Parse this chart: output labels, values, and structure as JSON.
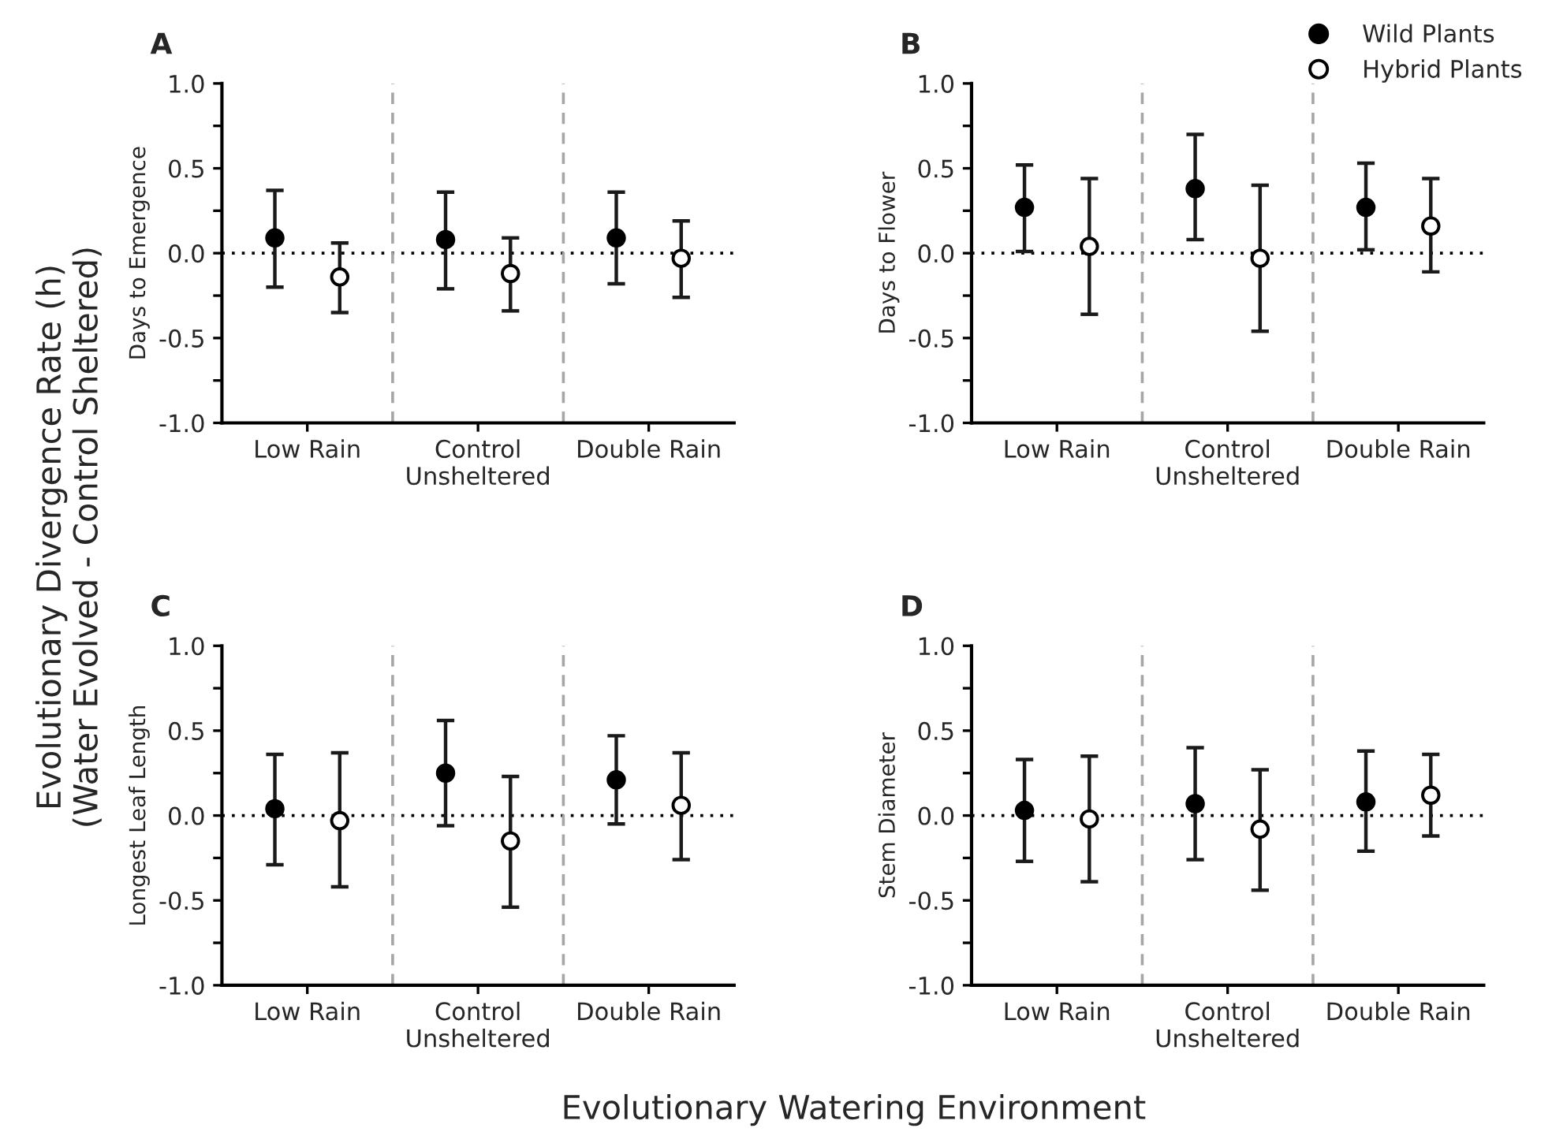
{
  "chart_data": [
    {
      "type": "scatter",
      "title": "A",
      "ylabel": "Days to Emergence",
      "categories": [
        "Low Rain",
        "Control\nUnsheltered",
        "Double Rain"
      ],
      "ylim": [
        -1.0,
        1.0
      ],
      "yticks": [
        {
          "value": -1.0,
          "label": "-1.0"
        },
        {
          "value": -0.75,
          "label": null
        },
        {
          "value": -0.5,
          "label": "-0.5"
        },
        {
          "value": -0.25,
          "label": null
        },
        {
          "value": 0.0,
          "label": "0.0"
        },
        {
          "value": 0.25,
          "label": null
        },
        {
          "value": 0.5,
          "label": "0.5"
        },
        {
          "value": 0.75,
          "label": null
        },
        {
          "value": 1.0,
          "label": "1.0"
        }
      ],
      "grid": false,
      "legend": "top right",
      "annotations": [
        "Evolutionary Divergence Rate (h)\n(Water Evolved - Control Sheltered)",
        "Evolutionary Watering Environment"
      ],
      "ref_lines": [
        {
          "axis": "y",
          "value": 0,
          "color": "#000000",
          "line_style": "dotted"
        }
      ],
      "series": [
        {
          "name": "Wild Plants",
          "color": "#000000",
          "values": [
            0.09,
            0.08,
            0.09
          ],
          "errors": [
            [
              -0.2,
              0.37
            ],
            [
              -0.21,
              0.36
            ],
            [
              -0.18,
              0.36
            ]
          ]
        },
        {
          "name": "Hybrid Plants",
          "color": "#ffffff",
          "values": [
            -0.14,
            -0.12,
            -0.03
          ],
          "errors": [
            [
              -0.35,
              0.06
            ],
            [
              -0.34,
              0.09
            ],
            [
              -0.26,
              0.19
            ]
          ]
        }
      ]
    },
    {
      "type": "scatter",
      "title": "B",
      "ylabel": "Days to Flower",
      "categories": [
        "Low Rain",
        "Control\nUnsheltered",
        "Double Rain"
      ],
      "ylim": [
        -1.0,
        1.0
      ],
      "yticks": [
        {
          "value": -1.0,
          "label": "-1.0"
        },
        {
          "value": -0.75,
          "label": null
        },
        {
          "value": -0.5,
          "label": "-0.5"
        },
        {
          "value": -0.25,
          "label": null
        },
        {
          "value": 0.0,
          "label": "0.0"
        },
        {
          "value": 0.25,
          "label": null
        },
        {
          "value": 0.5,
          "label": "0.5"
        },
        {
          "value": 0.75,
          "label": null
        },
        {
          "value": 1.0,
          "label": "1.0"
        }
      ],
      "grid": false,
      "ref_lines": [
        {
          "axis": "y",
          "value": 0,
          "color": "#000000",
          "line_style": "dotted"
        }
      ],
      "series": [
        {
          "color": "#000000",
          "values": [
            0.27,
            0.38,
            0.27
          ],
          "errors": [
            [
              0.01,
              0.52
            ],
            [
              0.08,
              0.7
            ],
            [
              0.02,
              0.53
            ]
          ]
        },
        {
          "color": "#ffffff",
          "values": [
            0.04,
            -0.03,
            0.16
          ],
          "errors": [
            [
              -0.36,
              0.44
            ],
            [
              -0.46,
              0.4
            ],
            [
              -0.11,
              0.44
            ]
          ]
        }
      ]
    },
    {
      "type": "scatter",
      "title": "C",
      "ylabel": "Longest Leaf Length",
      "categories": [
        "Low Rain",
        "Control\nUnsheltered",
        "Double Rain"
      ],
      "ylim": [
        -1.0,
        1.0
      ],
      "yticks": [
        {
          "value": -1.0,
          "label": "-1.0"
        },
        {
          "value": -0.75,
          "label": null
        },
        {
          "value": -0.5,
          "label": "-0.5"
        },
        {
          "value": -0.25,
          "label": null
        },
        {
          "value": 0.0,
          "label": "0.0"
        },
        {
          "value": 0.25,
          "label": null
        },
        {
          "value": 0.5,
          "label": "0.5"
        },
        {
          "value": 0.75,
          "label": null
        },
        {
          "value": 1.0,
          "label": "1.0"
        }
      ],
      "grid": false,
      "ref_lines": [
        {
          "axis": "y",
          "value": 0,
          "color": "#000000",
          "line_style": "dotted"
        }
      ],
      "series": [
        {
          "color": "#000000",
          "values": [
            0.04,
            0.25,
            0.21
          ],
          "errors": [
            [
              -0.29,
              0.36
            ],
            [
              -0.06,
              0.56
            ],
            [
              -0.05,
              0.47
            ]
          ]
        },
        {
          "color": "#ffffff",
          "values": [
            -0.03,
            -0.15,
            0.06
          ],
          "errors": [
            [
              -0.42,
              0.37
            ],
            [
              -0.54,
              0.23
            ],
            [
              -0.26,
              0.37
            ]
          ]
        }
      ]
    },
    {
      "type": "scatter",
      "title": "D",
      "ylabel": "Stem Diameter",
      "categories": [
        "Low Rain",
        "Control\nUnsheltered",
        "Double Rain"
      ],
      "ylim": [
        -1.0,
        1.0
      ],
      "yticks": [
        {
          "value": -1.0,
          "label": "-1.0"
        },
        {
          "value": -0.75,
          "label": null
        },
        {
          "value": -0.5,
          "label": "-0.5"
        },
        {
          "value": -0.25,
          "label": null
        },
        {
          "value": 0.0,
          "label": "0.0"
        },
        {
          "value": 0.25,
          "label": null
        },
        {
          "value": 0.5,
          "label": "0.5"
        },
        {
          "value": 0.75,
          "label": null
        },
        {
          "value": 1.0,
          "label": "1.0"
        }
      ],
      "grid": false,
      "ref_lines": [
        {
          "axis": "y",
          "value": 0,
          "color": "#000000",
          "line_style": "dotted"
        }
      ],
      "series": [
        {
          "color": "#000000",
          "values": [
            0.03,
            0.07,
            0.08
          ],
          "errors": [
            [
              -0.27,
              0.33
            ],
            [
              -0.26,
              0.4
            ],
            [
              -0.21,
              0.38
            ]
          ]
        },
        {
          "color": "#ffffff",
          "values": [
            -0.02,
            -0.08,
            0.12
          ],
          "errors": [
            [
              -0.39,
              0.35
            ],
            [
              -0.44,
              0.27
            ],
            [
              -0.12,
              0.36
            ]
          ]
        }
      ]
    }
  ]
}
